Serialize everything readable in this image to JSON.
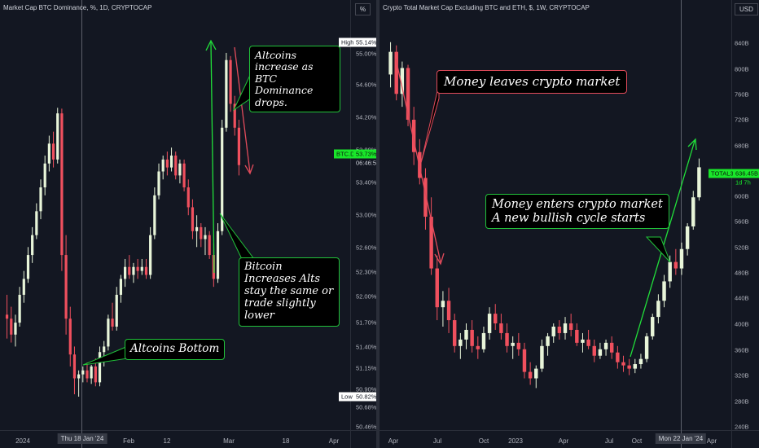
{
  "colors": {
    "background": "#131722",
    "up_candle": "#e8f5d9",
    "down_candle": "#f0505e",
    "arrow_green": "#21e03a",
    "arrow_red": "#e24b5b",
    "tag_green": "#19e62a"
  },
  "left_chart": {
    "title": "Market Cap BTC Dominance, %, 1D, CRYPTOCAP",
    "unit_box": "%",
    "high_label": "High",
    "high_value": "55.14%",
    "low_label": "Low",
    "low_value": "50.82%",
    "symbol_tag": "BTC.D",
    "price_tag": "53.73%",
    "countdown_tag": "06:46:56",
    "xaxis_highlight": "Thu 18 Jan '24",
    "callouts": {
      "altcoins_increase": "Altcoins increase as BTC Dominance drops.",
      "bitcoin_increases": "Bitcoin Increases Alts stay the same or trade slightly lower",
      "altcoins_bottom": "Altcoins Bottom"
    }
  },
  "right_chart": {
    "title": "Crypto Total Market Cap Excluding BTC and ETH, $, 1W, CRYPTOCAP",
    "unit_box": "USD",
    "symbol_tag": "TOTAL3",
    "price_tag": "636.45B",
    "countdown_tag": "1d 7h",
    "xaxis_highlight": "Mon 22 Jan '24",
    "callouts": {
      "money_leaves": "Money leaves crypto market",
      "money_enters_1": "Money enters crypto market",
      "money_enters_2": "A new bullish cycle starts"
    }
  },
  "chart_data": [
    {
      "type": "candlestick",
      "title": "Market Cap BTC Dominance, %, 1D, CRYPTOCAP",
      "y_unit": "%",
      "ylim": [
        50.4,
        55.6
      ],
      "ytick_labels": [
        "55.00%",
        "54.60%",
        "54.20%",
        "53.80%",
        "53.40%",
        "53.00%",
        "52.60%",
        "52.30%",
        "52.00%",
        "51.70%",
        "51.40%",
        "51.15%",
        "50.90%",
        "50.68%",
        "50.46%"
      ],
      "xtick_labels": [
        "2024",
        "Feb",
        "12",
        "Mar",
        "18",
        "Apr"
      ],
      "high": 55.14,
      "low": 50.82,
      "last": 53.73,
      "ohlc": [
        [
          51.85,
          52.1,
          51.55,
          51.8
        ],
        [
          51.8,
          51.95,
          51.5,
          51.6
        ],
        [
          51.6,
          51.85,
          51.45,
          51.75
        ],
        [
          51.75,
          52.2,
          51.7,
          52.1
        ],
        [
          52.1,
          52.4,
          52.0,
          52.3
        ],
        [
          52.3,
          52.7,
          52.25,
          52.6
        ],
        [
          52.6,
          52.95,
          52.5,
          52.85
        ],
        [
          52.85,
          53.25,
          52.8,
          53.15
        ],
        [
          53.15,
          53.55,
          53.05,
          53.45
        ],
        [
          53.45,
          53.85,
          53.35,
          53.75
        ],
        [
          53.75,
          54.1,
          53.65,
          54.0
        ],
        [
          54.0,
          54.15,
          53.7,
          53.8
        ],
        [
          53.8,
          54.45,
          53.75,
          54.38
        ],
        [
          54.38,
          54.44,
          52.4,
          52.6
        ],
        [
          52.6,
          52.85,
          51.6,
          51.8
        ],
        [
          51.8,
          51.95,
          51.2,
          51.35
        ],
        [
          51.35,
          51.45,
          50.85,
          51.05
        ],
        [
          51.05,
          51.15,
          50.82,
          51.1
        ],
        [
          51.1,
          51.2,
          51.0,
          51.15
        ],
        [
          51.15,
          51.25,
          51.0,
          51.05
        ],
        [
          51.05,
          51.22,
          50.98,
          51.2
        ],
        [
          51.2,
          51.3,
          50.95,
          51.0
        ],
        [
          51.0,
          51.45,
          50.95,
          51.38
        ],
        [
          51.38,
          51.52,
          51.2,
          51.45
        ],
        [
          51.45,
          51.85,
          51.4,
          51.8
        ],
        [
          51.8,
          52.0,
          51.65,
          51.7
        ],
        [
          51.7,
          52.2,
          51.65,
          52.1
        ],
        [
          52.1,
          52.35,
          52.0,
          52.3
        ],
        [
          52.3,
          52.55,
          52.2,
          52.45
        ],
        [
          52.45,
          52.6,
          52.3,
          52.35
        ],
        [
          52.35,
          52.5,
          52.25,
          52.45
        ],
        [
          52.45,
          52.55,
          52.3,
          52.4
        ],
        [
          52.4,
          52.55,
          52.35,
          52.45
        ],
        [
          52.45,
          52.55,
          52.3,
          52.35
        ],
        [
          52.35,
          52.95,
          52.3,
          52.85
        ],
        [
          52.85,
          53.45,
          52.8,
          53.35
        ],
        [
          53.35,
          53.75,
          53.3,
          53.65
        ],
        [
          53.65,
          53.85,
          53.55,
          53.8
        ],
        [
          53.8,
          53.9,
          53.6,
          53.7
        ],
        [
          53.7,
          53.95,
          53.65,
          53.85
        ],
        [
          53.85,
          53.9,
          53.55,
          53.6
        ],
        [
          53.6,
          53.8,
          53.5,
          53.75
        ],
        [
          53.75,
          53.8,
          53.4,
          53.45
        ],
        [
          53.45,
          53.55,
          53.1,
          53.2
        ],
        [
          53.2,
          53.3,
          52.8,
          52.9
        ],
        [
          52.9,
          53.1,
          52.7,
          52.95
        ],
        [
          52.95,
          53.0,
          52.7,
          52.8
        ],
        [
          52.8,
          52.95,
          52.6,
          52.85
        ],
        [
          52.85,
          52.9,
          52.55,
          52.6
        ],
        [
          52.6,
          52.75,
          52.2,
          52.3
        ],
        [
          52.3,
          53.0,
          52.25,
          52.9
        ],
        [
          52.9,
          54.3,
          52.85,
          54.2
        ],
        [
          54.2,
          55.14,
          54.15,
          55.05
        ],
        [
          55.05,
          55.1,
          54.4,
          54.5
        ],
        [
          54.5,
          54.6,
          54.1,
          54.2
        ],
        [
          54.2,
          54.3,
          53.6,
          53.73
        ]
      ]
    },
    {
      "type": "candlestick",
      "title": "Crypto Total Market Cap Excluding BTC and ETH, $, 1W, CRYPTOCAP",
      "y_unit": "USD",
      "ylim": [
        230,
        870
      ],
      "ytick_labels": [
        "840B",
        "800B",
        "760B",
        "720B",
        "680B",
        "640B",
        "600B",
        "560B",
        "520B",
        "480B",
        "440B",
        "400B",
        "360B",
        "320B",
        "280B",
        "240B"
      ],
      "xtick_labels": [
        "Apr",
        "Jul",
        "Oct",
        "2023",
        "Apr",
        "Jul",
        "Oct",
        "Apr"
      ],
      "last": 636.45,
      "ohlc": [
        [
          780,
          830,
          760,
          815
        ],
        [
          815,
          825,
          740,
          750
        ],
        [
          750,
          800,
          730,
          790
        ],
        [
          790,
          795,
          700,
          710
        ],
        [
          710,
          730,
          640,
          660
        ],
        [
          660,
          680,
          610,
          620
        ],
        [
          620,
          635,
          540,
          560
        ],
        [
          560,
          590,
          470,
          480
        ],
        [
          480,
          500,
          400,
          420
        ],
        [
          420,
          445,
          390,
          430
        ],
        [
          430,
          450,
          380,
          400
        ],
        [
          400,
          410,
          350,
          360
        ],
        [
          360,
          380,
          340,
          370
        ],
        [
          370,
          395,
          355,
          385
        ],
        [
          385,
          400,
          350,
          360
        ],
        [
          360,
          375,
          340,
          355
        ],
        [
          355,
          390,
          350,
          380
        ],
        [
          380,
          420,
          370,
          410
        ],
        [
          410,
          425,
          385,
          395
        ],
        [
          395,
          410,
          370,
          380
        ],
        [
          380,
          395,
          350,
          360
        ],
        [
          360,
          375,
          340,
          365
        ],
        [
          365,
          380,
          345,
          355
        ],
        [
          355,
          365,
          310,
          320
        ],
        [
          320,
          335,
          300,
          310
        ],
        [
          310,
          330,
          295,
          325
        ],
        [
          325,
          370,
          320,
          360
        ],
        [
          360,
          380,
          345,
          375
        ],
        [
          375,
          395,
          365,
          390
        ],
        [
          390,
          400,
          370,
          380
        ],
        [
          380,
          405,
          370,
          395
        ],
        [
          395,
          410,
          375,
          385
        ],
        [
          385,
          395,
          360,
          365
        ],
        [
          365,
          380,
          350,
          370
        ],
        [
          370,
          385,
          355,
          360
        ],
        [
          360,
          370,
          335,
          345
        ],
        [
          345,
          365,
          340,
          355
        ],
        [
          355,
          370,
          345,
          365
        ],
        [
          365,
          375,
          340,
          350
        ],
        [
          350,
          360,
          325,
          335
        ],
        [
          335,
          345,
          320,
          330
        ],
        [
          330,
          340,
          315,
          325
        ],
        [
          325,
          340,
          318,
          332
        ],
        [
          332,
          348,
          325,
          340
        ],
        [
          340,
          380,
          335,
          375
        ],
        [
          375,
          410,
          370,
          405
        ],
        [
          405,
          440,
          395,
          430
        ],
        [
          430,
          470,
          420,
          460
        ],
        [
          460,
          500,
          450,
          490
        ],
        [
          490,
          510,
          470,
          480
        ],
        [
          480,
          520,
          470,
          510
        ],
        [
          510,
          550,
          500,
          545
        ],
        [
          545,
          600,
          540,
          590
        ],
        [
          590,
          650,
          585,
          636.45
        ]
      ]
    }
  ]
}
